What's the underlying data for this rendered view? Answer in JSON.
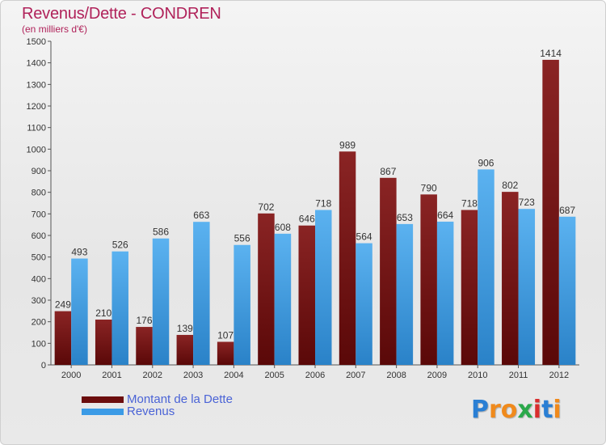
{
  "title": "Revenus/Dette - CONDREN",
  "subtitle": "(en milliers d'€)",
  "colors": {
    "debt": "#7a0f0f",
    "revenue": "#2e8fd9",
    "title": "#b0225a",
    "legend_text": "#4a63d6"
  },
  "legend": [
    {
      "label": "Montant de la Dette",
      "color": "#6b0d0d"
    },
    {
      "label": "Revenus",
      "color": "#3b9be6"
    }
  ],
  "logo": {
    "letters": [
      "P",
      "r",
      "o",
      "x",
      "i",
      "t",
      "i"
    ],
    "colors": [
      "#2a7fd4",
      "#f08a1c",
      "#f08a1c",
      "#2aa84a",
      "#d92e2e",
      "#2a7fd4",
      "#f08a1c"
    ]
  },
  "chart_data": {
    "type": "bar",
    "categories": [
      "2000",
      "2001",
      "2002",
      "2003",
      "2004",
      "2005",
      "2006",
      "2007",
      "2008",
      "2009",
      "2010",
      "2011",
      "2012"
    ],
    "series": [
      {
        "name": "Montant de la Dette",
        "values": [
          249,
          210,
          176,
          139,
          107,
          702,
          646,
          989,
          867,
          790,
          718,
          802,
          1414
        ]
      },
      {
        "name": "Revenus",
        "values": [
          493,
          526,
          586,
          663,
          556,
          608,
          718,
          564,
          653,
          664,
          906,
          723,
          687
        ]
      }
    ],
    "ylim": [
      0,
      1500
    ],
    "yticks": [
      0,
      100,
      200,
      300,
      400,
      500,
      600,
      700,
      800,
      900,
      1000,
      1100,
      1200,
      1300,
      1400,
      1500
    ],
    "grid": false,
    "legend_position": "bottom-left"
  }
}
